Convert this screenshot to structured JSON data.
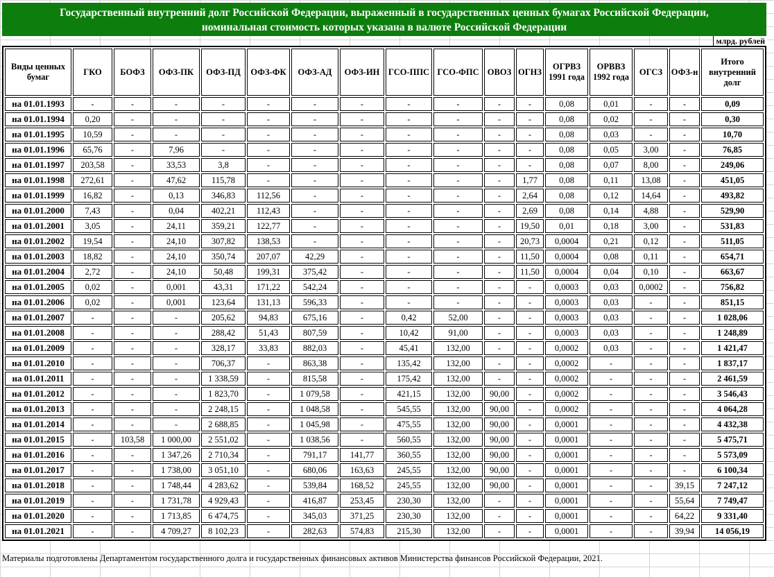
{
  "page": {
    "title_line1": "Государственный внутренний долг Российской Федерации, выраженный в государственных ценных бумагах Российской Федерации,",
    "title_line2": "номинальная стоимость которых указана в валюте Российской Федерации",
    "unit_label": "млрд. рублей",
    "footer": "Материалы подготовлены Департаментом государственного долга и государственных финансовых активов Министерства финансов Российской Федерации, 2021.",
    "accent_green": "#0d7d0d",
    "gridline_color": "#d4d4d4"
  },
  "table": {
    "corner_header": "Виды ценных бумаг",
    "columns": [
      "ГКО",
      "БОФЗ",
      "ОФЗ-ПК",
      "ОФЗ-ПД",
      "ОФЗ-ФК",
      "ОФЗ-АД",
      "ОФЗ-ИН",
      "ГСО-ППС",
      "ГСО-ФПС",
      "ОВОЗ",
      "ОГНЗ",
      "ОГРВЗ 1991 года",
      "ОРВВЗ 1992 года",
      "ОГСЗ",
      "ОФЗ-н",
      "Итого внутренний долг"
    ],
    "rows": [
      {
        "label": "на 01.01.1993",
        "values": [
          "-",
          "-",
          "-",
          "-",
          "-",
          "-",
          "-",
          "-",
          "-",
          "-",
          "-",
          "0,08",
          "0,01",
          "-",
          "-",
          "0,09"
        ]
      },
      {
        "label": "на 01.01.1994",
        "values": [
          "0,20",
          "-",
          "-",
          "-",
          "-",
          "-",
          "-",
          "-",
          "-",
          "-",
          "-",
          "0,08",
          "0,02",
          "-",
          "-",
          "0,30"
        ]
      },
      {
        "label": "на 01.01.1995",
        "values": [
          "10,59",
          "-",
          "-",
          "-",
          "-",
          "-",
          "-",
          "-",
          "-",
          "-",
          "-",
          "0,08",
          "0,03",
          "-",
          "-",
          "10,70"
        ]
      },
      {
        "label": "на 01.01.1996",
        "values": [
          "65,76",
          "-",
          "7,96",
          "-",
          "-",
          "-",
          "-",
          "-",
          "-",
          "-",
          "-",
          "0,08",
          "0,05",
          "3,00",
          "-",
          "76,85"
        ]
      },
      {
        "label": "на 01.01.1997",
        "values": [
          "203,58",
          "-",
          "33,53",
          "3,8",
          "-",
          "-",
          "-",
          "-",
          "-",
          "-",
          "-",
          "0,08",
          "0,07",
          "8,00",
          "-",
          "249,06"
        ]
      },
      {
        "label": "на 01.01.1998",
        "values": [
          "272,61",
          "-",
          "47,62",
          "115,78",
          "-",
          "-",
          "-",
          "-",
          "-",
          "-",
          "1,77",
          "0,08",
          "0,11",
          "13,08",
          "-",
          "451,05"
        ]
      },
      {
        "label": "на 01.01.1999",
        "values": [
          "16,82",
          "-",
          "0,13",
          "346,83",
          "112,56",
          "-",
          "-",
          "-",
          "-",
          "-",
          "2,64",
          "0,08",
          "0,12",
          "14,64",
          "-",
          "493,82"
        ]
      },
      {
        "label": "на 01.01.2000",
        "values": [
          "7,43",
          "-",
          "0,04",
          "402,21",
          "112,43",
          "-",
          "-",
          "-",
          "-",
          "-",
          "2,69",
          "0,08",
          "0,14",
          "4,88",
          "-",
          "529,90"
        ]
      },
      {
        "label": "на 01.01.2001",
        "values": [
          "3,05",
          "-",
          "24,11",
          "359,21",
          "122,77",
          "-",
          "-",
          "-",
          "-",
          "-",
          "19,50",
          "0,01",
          "0,18",
          "3,00",
          "-",
          "531,83"
        ]
      },
      {
        "label": "на 01.01.2002",
        "values": [
          "19,54",
          "-",
          "24,10",
          "307,82",
          "138,53",
          "-",
          "-",
          "-",
          "-",
          "-",
          "20,73",
          "0,0004",
          "0,21",
          "0,12",
          "-",
          "511,05"
        ]
      },
      {
        "label": "на 01.01.2003",
        "values": [
          "18,82",
          "-",
          "24,10",
          "350,74",
          "207,07",
          "42,29",
          "-",
          "-",
          "-",
          "-",
          "11,50",
          "0,0004",
          "0,08",
          "0,11",
          "-",
          "654,71"
        ]
      },
      {
        "label": "на 01.01.2004",
        "values": [
          "2,72",
          "-",
          "24,10",
          "50,48",
          "199,31",
          "375,42",
          "-",
          "-",
          "-",
          "-",
          "11,50",
          "0,0004",
          "0,04",
          "0,10",
          "-",
          "663,67"
        ]
      },
      {
        "label": "на 01.01.2005",
        "values": [
          "0,02",
          "-",
          "0,001",
          "43,31",
          "171,22",
          "542,24",
          "-",
          "-",
          "-",
          "-",
          "-",
          "0,0003",
          "0,03",
          "0,0002",
          "-",
          "756,82"
        ]
      },
      {
        "label": "на 01.01.2006",
        "values": [
          "0,02",
          "-",
          "0,001",
          "123,64",
          "131,13",
          "596,33",
          "-",
          "-",
          "-",
          "-",
          "-",
          "0,0003",
          "0,03",
          "-",
          "-",
          "851,15"
        ]
      },
      {
        "label": "на 01.01.2007",
        "values": [
          "-",
          "-",
          "-",
          "205,62",
          "94,83",
          "675,16",
          "-",
          "0,42",
          "52,00",
          "-",
          "-",
          "0,0003",
          "0,03",
          "-",
          "-",
          "1 028,06"
        ]
      },
      {
        "label": "на 01.01.2008",
        "values": [
          "-",
          "-",
          "-",
          "288,42",
          "51,43",
          "807,59",
          "-",
          "10,42",
          "91,00",
          "-",
          "-",
          "0,0003",
          "0,03",
          "-",
          "-",
          "1 248,89"
        ]
      },
      {
        "label": "на 01.01.2009",
        "values": [
          "-",
          "-",
          "-",
          "328,17",
          "33,83",
          "882,03",
          "-",
          "45,41",
          "132,00",
          "-",
          "-",
          "0,0002",
          "0,03",
          "-",
          "-",
          "1 421,47"
        ]
      },
      {
        "label": "на 01.01.2010",
        "values": [
          "-",
          "-",
          "-",
          "706,37",
          "-",
          "863,38",
          "-",
          "135,42",
          "132,00",
          "-",
          "-",
          "0,0002",
          "-",
          "-",
          "-",
          "1 837,17"
        ]
      },
      {
        "label": "на 01.01.2011",
        "values": [
          "-",
          "-",
          "-",
          "1 338,59",
          "-",
          "815,58",
          "-",
          "175,42",
          "132,00",
          "-",
          "-",
          "0,0002",
          "-",
          "-",
          "-",
          "2 461,59"
        ]
      },
      {
        "label": "на 01.01.2012",
        "values": [
          "-",
          "-",
          "-",
          "1 823,70",
          "-",
          "1 079,58",
          "-",
          "421,15",
          "132,00",
          "90,00",
          "-",
          "0,0002",
          "-",
          "-",
          "-",
          "3 546,43"
        ]
      },
      {
        "label": "на 01.01.2013",
        "values": [
          "-",
          "-",
          "-",
          "2 248,15",
          "-",
          "1 048,58",
          "-",
          "545,55",
          "132,00",
          "90,00",
          "-",
          "0,0002",
          "-",
          "-",
          "-",
          "4 064,28"
        ]
      },
      {
        "label": "на 01.01.2014",
        "values": [
          "-",
          "-",
          "-",
          "2 688,85",
          "-",
          "1 045,98",
          "-",
          "475,55",
          "132,00",
          "90,00",
          "-",
          "0,0001",
          "-",
          "-",
          "-",
          "4 432,38"
        ]
      },
      {
        "label": "на 01.01.2015",
        "values": [
          "-",
          "103,58",
          "1 000,00",
          "2 551,02",
          "-",
          "1 038,56",
          "-",
          "560,55",
          "132,00",
          "90,00",
          "-",
          "0,0001",
          "-",
          "-",
          "-",
          "5 475,71"
        ]
      },
      {
        "label": "на 01.01.2016",
        "values": [
          "-",
          "-",
          "1 347,26",
          "2 710,34",
          "-",
          "791,17",
          "141,77",
          "360,55",
          "132,00",
          "90,00",
          "-",
          "0,0001",
          "-",
          "-",
          "-",
          "5 573,09"
        ]
      },
      {
        "label": "на 01.01.2017",
        "values": [
          "-",
          "-",
          "1 738,00",
          "3 051,10",
          "-",
          "680,06",
          "163,63",
          "245,55",
          "132,00",
          "90,00",
          "-",
          "0,0001",
          "-",
          "-",
          "-",
          "6 100,34"
        ]
      },
      {
        "label": "на 01.01.2018",
        "values": [
          "-",
          "-",
          "1 748,44",
          "4 283,62",
          "-",
          "539,84",
          "168,52",
          "245,55",
          "132,00",
          "90,00",
          "-",
          "0,0001",
          "-",
          "-",
          "39,15",
          "7 247,12"
        ]
      },
      {
        "label": "на 01.01.2019",
        "values": [
          "-",
          "-",
          "1 731,78",
          "4 929,43",
          "-",
          "416,87",
          "253,45",
          "230,30",
          "132,00",
          "-",
          "-",
          "0,0001",
          "-",
          "-",
          "55,64",
          "7 749,47"
        ]
      },
      {
        "label": "на 01.01.2020",
        "values": [
          "-",
          "-",
          "1 713,85",
          "6 474,75",
          "-",
          "345,03",
          "371,25",
          "230,30",
          "132,00",
          "-",
          "-",
          "0,0001",
          "-",
          "-",
          "64,22",
          "9 331,40"
        ]
      },
      {
        "label": "на 01.01.2021",
        "values": [
          "-",
          "-",
          "4 709,27",
          "8 102,23",
          "-",
          "282,63",
          "574,83",
          "215,30",
          "132,00",
          "-",
          "-",
          "0,0001",
          "-",
          "-",
          "39,94",
          "14 056,19"
        ]
      }
    ]
  }
}
